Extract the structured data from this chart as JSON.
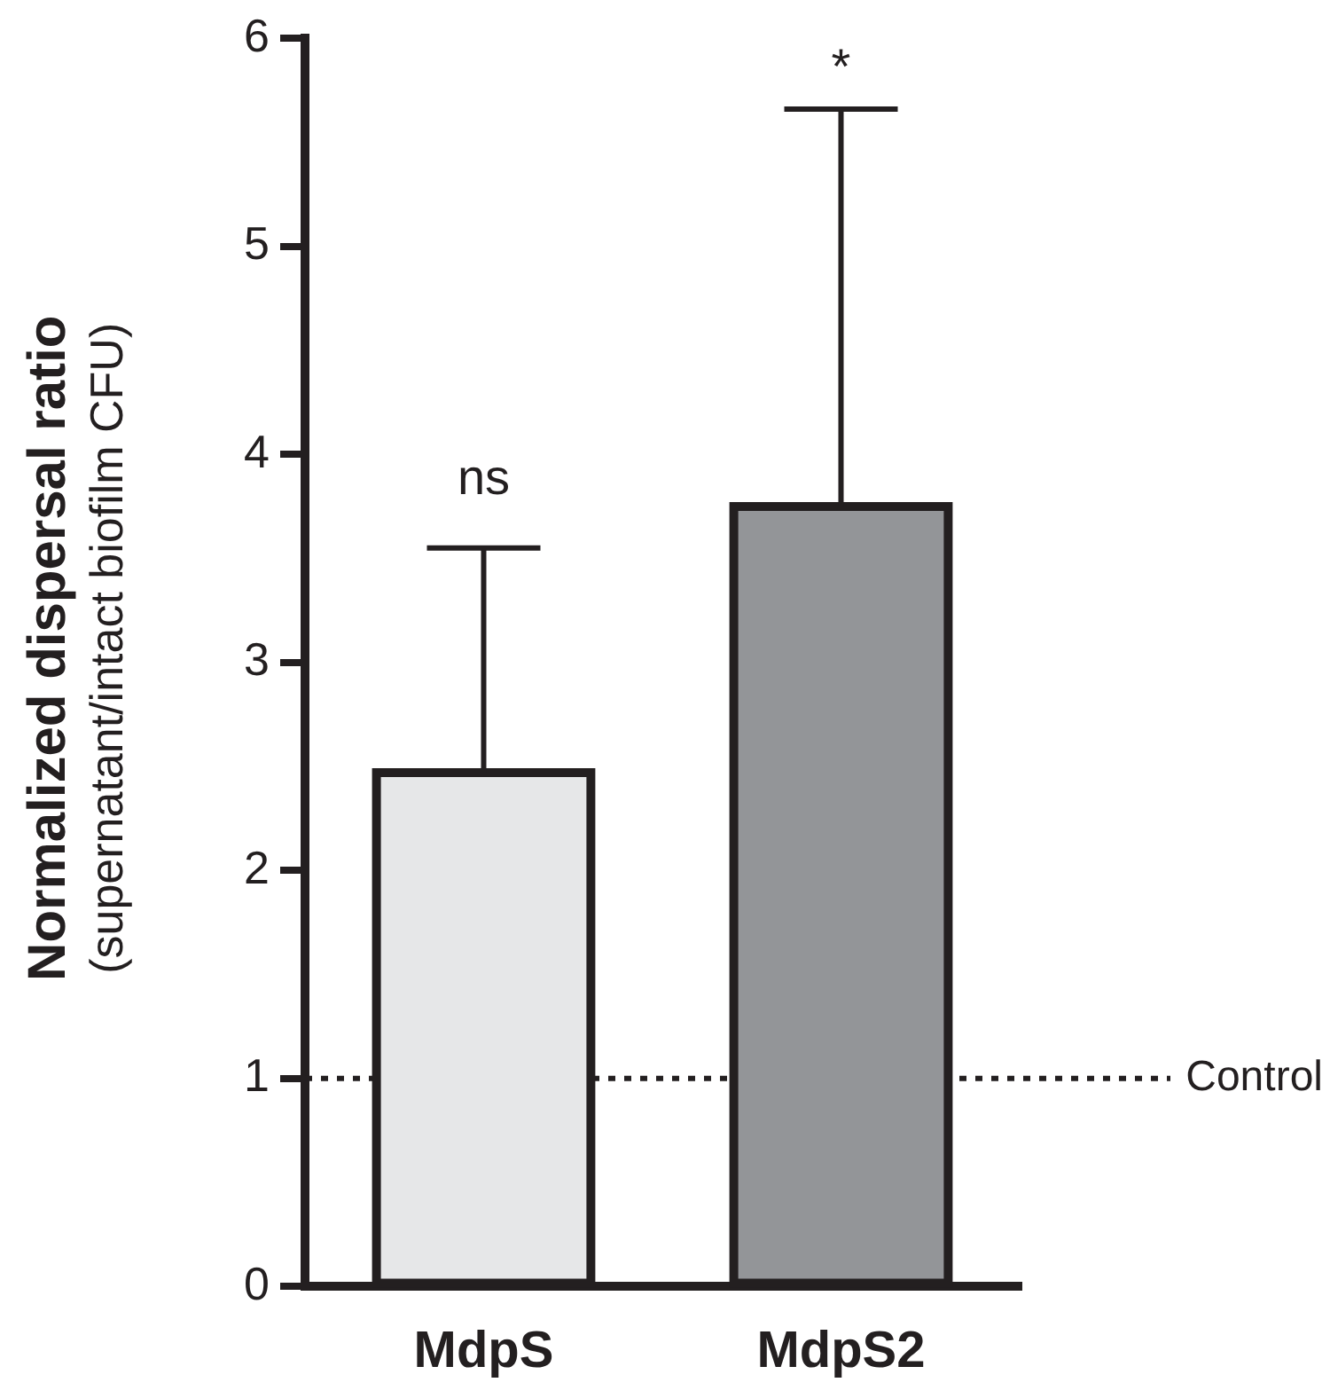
{
  "chart_data": {
    "type": "bar",
    "ylabel": "Normalized dispersal ratio\n(supernatant/intact biofilm CFU)",
    "categories": [
      "MdpS",
      "MdpS2"
    ],
    "values": [
      2.47,
      3.75
    ],
    "errors": [
      [
        2.47,
        3.55
      ],
      [
        3.75,
        5.66
      ]
    ],
    "colors": [
      "#e6e7e8",
      "#939598"
    ],
    "ylim": [
      0,
      6
    ],
    "yticks": [
      0,
      1,
      2,
      3,
      4,
      5,
      6
    ],
    "ref_lines": [
      {
        "axis": "y",
        "value": 1,
        "label": "Control",
        "line_style": "dotted",
        "color": "#231f20"
      }
    ],
    "annotations": [
      {
        "text": "ns",
        "x": "MdpS",
        "y": 3.55
      },
      {
        "text": "*",
        "x": "MdpS2",
        "y": 5.66
      }
    ],
    "grid": false,
    "legend": false
  }
}
